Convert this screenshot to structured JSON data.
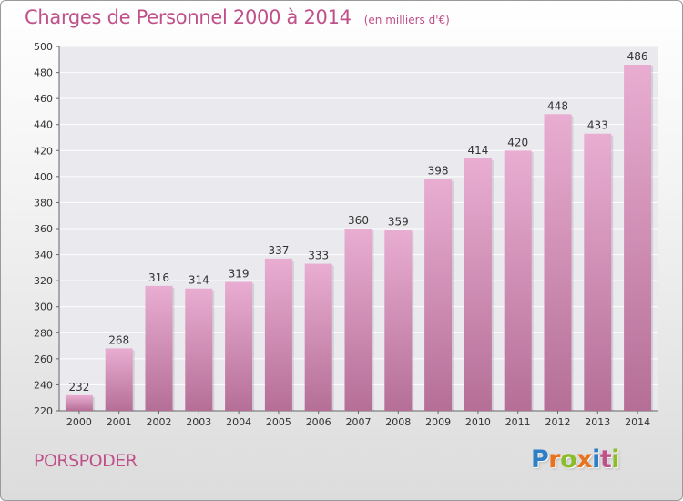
{
  "header": {
    "title": "Charges de Personnel 2000 à 2014",
    "subtitle": "(en milliers d'€)"
  },
  "footer": {
    "place": "PORSPODER",
    "logo_text": "Proxiti",
    "logo_colors": [
      "#2f7fc6",
      "#e8731e",
      "#8bbd2a",
      "#e8731e",
      "#2f7fc6",
      "#c0508a",
      "#8bbd2a"
    ]
  },
  "colors": {
    "accent": "#c0508a",
    "bar_top": "#e9add2",
    "bar_bottom": "#b56f97"
  },
  "chart_data": {
    "type": "bar",
    "categories": [
      "2000",
      "2001",
      "2002",
      "2003",
      "2004",
      "2005",
      "2006",
      "2007",
      "2008",
      "2009",
      "2010",
      "2011",
      "2012",
      "2013",
      "2014"
    ],
    "values": [
      232,
      268,
      316,
      314,
      319,
      337,
      333,
      360,
      359,
      398,
      414,
      420,
      448,
      433,
      486
    ],
    "ylim": [
      220,
      500
    ],
    "yticks": [
      220,
      240,
      260,
      280,
      300,
      320,
      340,
      360,
      380,
      400,
      420,
      440,
      460,
      480,
      500
    ],
    "grid": true,
    "legend": "none"
  }
}
